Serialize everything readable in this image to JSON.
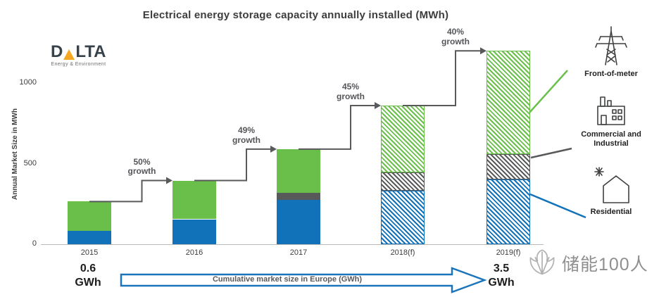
{
  "logo": {
    "d": "D",
    "lta": "LTA",
    "subtitle": "Energy & Environment"
  },
  "chart_data": {
    "type": "bar",
    "stacked": true,
    "title": "Electrical energy storage capacity annually installed (MWh)",
    "ylabel": "Annual Market Size in MWh",
    "ylim": [
      0,
      1200
    ],
    "yticks": [
      0,
      500,
      1000
    ],
    "grid": false,
    "legend_position": "right",
    "categories": [
      "2015",
      "2016",
      "2017",
      "2018(f)",
      "2019(f)"
    ],
    "forecast_categories": [
      "2018(f)",
      "2019(f)"
    ],
    "series": [
      {
        "name": "Residential",
        "color": "#1272b9",
        "values": [
          85,
          155,
          275,
          330,
          400
        ]
      },
      {
        "name": "Commercial and Industrial",
        "color": "#58595b",
        "values": [
          0,
          0,
          45,
          115,
          160
        ]
      },
      {
        "name": "Front-of-meter",
        "color": "#6abf4b",
        "values": [
          180,
          240,
          270,
          415,
          640
        ]
      }
    ],
    "totals_mwh": [
      265,
      395,
      590,
      860,
      1200
    ],
    "growth_annotations": [
      {
        "from": "2015",
        "to": "2016",
        "pct": "50%",
        "word": "growth"
      },
      {
        "from": "2016",
        "to": "2017",
        "pct": "49%",
        "word": "growth"
      },
      {
        "from": "2017",
        "to": "2018(f)",
        "pct": "45%",
        "word": "growth"
      },
      {
        "from": "2018(f)",
        "to": "2019(f)",
        "pct": "40%",
        "word": "growth"
      }
    ]
  },
  "legend": {
    "items": [
      {
        "label": "Front-of-meter",
        "icon": "transmission-tower-icon",
        "color": "#6abf4b"
      },
      {
        "label": "Commercial and Industrial",
        "icon": "factory-icon",
        "color": "#58595b"
      },
      {
        "label": "Residential",
        "icon": "house-icon",
        "color": "#1272b9"
      }
    ]
  },
  "footer": {
    "left_value": "0.6",
    "left_unit": "GWh",
    "arrow_label": "Cumulative market size in Europe (GWh)",
    "right_value": "3.5",
    "right_unit": "GWh"
  },
  "watermark": {
    "text": "储能100人",
    "icon": "scallop-shell-icon"
  }
}
